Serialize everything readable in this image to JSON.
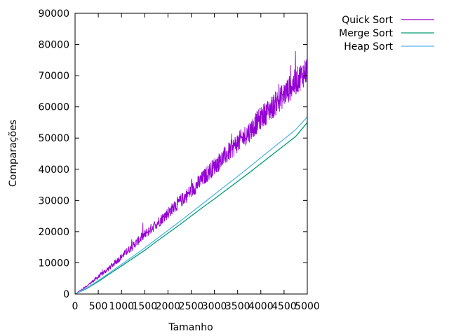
{
  "chart_data": {
    "type": "line",
    "title": "",
    "xlabel": "Tamanho",
    "ylabel": "Comparações",
    "xlim": [
      0,
      5000
    ],
    "ylim": [
      0,
      90000
    ],
    "x_ticks": [
      "0",
      "500",
      "1000",
      "1500",
      "2000",
      "2500",
      "3000",
      "3500",
      "4000",
      "4500",
      "5000"
    ],
    "y_ticks": [
      "0",
      "10000",
      "20000",
      "30000",
      "40000",
      "50000",
      "60000",
      "70000",
      "80000",
      "90000"
    ],
    "grid": false,
    "legend_position": "outside-top-right",
    "x": [
      0,
      250,
      500,
      750,
      1000,
      1250,
      1500,
      1750,
      2000,
      2250,
      2500,
      2750,
      3000,
      3250,
      3500,
      3750,
      4000,
      4250,
      4500,
      4750,
      5000
    ],
    "series": [
      {
        "name": "Quick Sort",
        "color": "#9400d3",
        "values": [
          0,
          2500,
          5500,
          8500,
          12000,
          15500,
          19000,
          22500,
          26000,
          29500,
          33000,
          37000,
          41000,
          44500,
          48500,
          52000,
          56500,
          60000,
          64000,
          68000,
          72000
        ],
        "noise_amplitude": [
          0,
          500,
          1200,
          1600,
          2000,
          2400,
          2800,
          3200,
          3600,
          4000,
          4400,
          4800,
          5200,
          5600,
          6000,
          6400,
          6800,
          7200,
          7600,
          8000,
          8400
        ]
      },
      {
        "name": "Merge Sort",
        "color": "#009e73",
        "values": [
          0,
          1700,
          4000,
          6500,
          9000,
          11500,
          14000,
          16800,
          19500,
          22200,
          25000,
          27800,
          30500,
          33300,
          36100,
          38900,
          41800,
          44700,
          47600,
          50500,
          55000
        ]
      },
      {
        "name": "Heap Sort",
        "color": "#56b4e9",
        "values": [
          0,
          1900,
          4300,
          6900,
          9500,
          12100,
          14800,
          17600,
          20400,
          23200,
          26100,
          29000,
          31900,
          34800,
          37700,
          40700,
          43700,
          46700,
          49700,
          52700,
          56800
        ]
      }
    ]
  }
}
